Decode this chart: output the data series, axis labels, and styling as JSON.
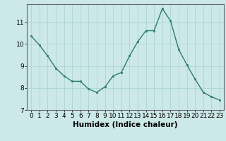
{
  "x": [
    0,
    1,
    2,
    3,
    4,
    5,
    6,
    7,
    8,
    9,
    10,
    11,
    12,
    13,
    14,
    15,
    16,
    17,
    18,
    19,
    20,
    21,
    22,
    23
  ],
  "y": [
    10.35,
    9.95,
    9.45,
    8.9,
    8.55,
    8.3,
    8.3,
    7.95,
    7.8,
    8.05,
    8.55,
    8.7,
    9.45,
    10.1,
    10.6,
    10.6,
    11.6,
    11.05,
    9.75,
    9.05,
    8.4,
    7.8,
    7.6,
    7.45
  ],
  "xlabel": "Humidex (Indice chaleur)",
  "ylim": [
    7,
    11.8
  ],
  "xlim": [
    -0.5,
    23.5
  ],
  "yticks": [
    7,
    8,
    9,
    10,
    11
  ],
  "xticks": [
    0,
    1,
    2,
    3,
    4,
    5,
    6,
    7,
    8,
    9,
    10,
    11,
    12,
    13,
    14,
    15,
    16,
    17,
    18,
    19,
    20,
    21,
    22,
    23
  ],
  "line_color": "#2d7d6e",
  "marker_color": "#2d7d6e",
  "bg_color": "#cce8e8",
  "grid_color": "#b0d8d5",
  "axis_color": "#666666",
  "label_fontsize": 7.5,
  "tick_fontsize": 6.5
}
